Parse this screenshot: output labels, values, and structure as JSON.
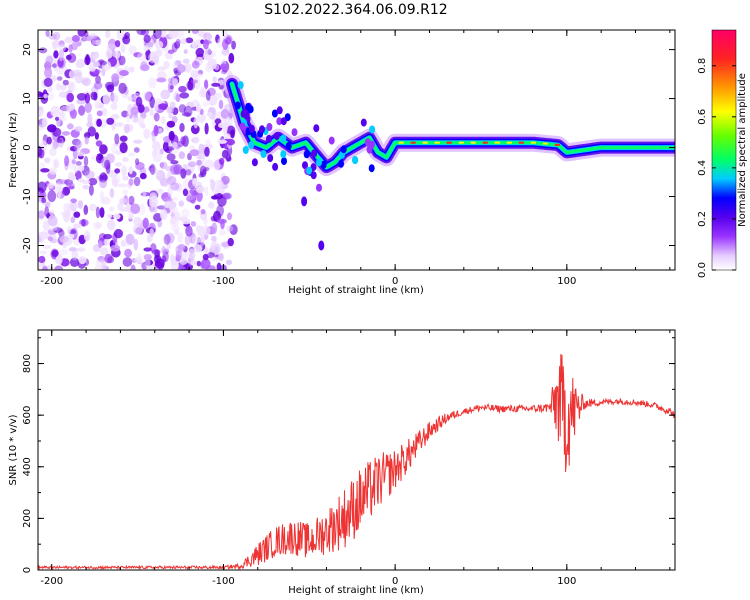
{
  "figure_title": "S102.2022.364.06.09.R12",
  "chart_data": [
    {
      "type": "heatmap",
      "title": "S102.2022.364.06.09.R12",
      "xlabel": "Height of straight line (km)",
      "ylabel": "Frequency (Hz)",
      "xlim": [
        -208,
        163
      ],
      "ylim": [
        -25,
        24
      ],
      "x_ticks": [
        -200,
        -100,
        0,
        100
      ],
      "y_ticks": [
        -20,
        -10,
        0,
        10,
        20
      ],
      "colorbar": {
        "label": "Normalized spectral amplitude",
        "range": [
          0,
          0.94
        ],
        "ticks": [
          "0.0",
          "0.2",
          "0.4",
          "0.6",
          "0.8"
        ],
        "tick_values": [
          0,
          0.2,
          0.4,
          0.6,
          0.8
        ],
        "colormap": [
          "#ffffff",
          "#e6ccff",
          "#9933ff",
          "#5500ee",
          "#0000ff",
          "#00ccff",
          "#00ff66",
          "#66ff00",
          "#ffff00",
          "#ff9900",
          "#ff2222",
          "#ff0066"
        ]
      },
      "signal_track": {
        "description_points_x": [
          -95,
          -88,
          -82,
          -75,
          -68,
          -60,
          -52,
          -45,
          -40,
          -35,
          -30,
          -25,
          -20,
          -15,
          -10,
          -5,
          0,
          20,
          40,
          60,
          80,
          95,
          100,
          120,
          140,
          163
        ],
        "description_points_y": [
          13,
          5,
          1,
          0,
          2,
          0,
          1,
          -2,
          -4,
          -3,
          -1,
          0,
          1,
          2,
          -1,
          -2,
          1,
          1,
          1,
          1,
          1,
          0.5,
          -1,
          0,
          0,
          0
        ]
      },
      "noise_region_x": [
        -208,
        -100
      ],
      "noise_region_y": [
        -25,
        24
      ],
      "isolated_blobs": [
        {
          "x": -53,
          "y": -11
        },
        {
          "x": -43,
          "y": -20
        }
      ]
    },
    {
      "type": "line",
      "xlabel": "Height of straight line (km)",
      "ylabel": "SNR (10 * v/v)",
      "xlim": [
        -208,
        163
      ],
      "ylim": [
        0,
        930
      ],
      "x_ticks": [
        -200,
        -100,
        0,
        100
      ],
      "y_ticks": [
        0,
        200,
        400,
        600,
        800
      ],
      "series": [
        {
          "name": "SNR",
          "color": "#ee3333",
          "trend_x": [
            -208,
            -150,
            -100,
            -90,
            -80,
            -70,
            -60,
            -50,
            -40,
            -30,
            -20,
            -10,
            0,
            10,
            20,
            30,
            40,
            50,
            60,
            70,
            80,
            90,
            95,
            100,
            105,
            110,
            120,
            130,
            140,
            150,
            160,
            163
          ],
          "trend_y": [
            10,
            10,
            10,
            15,
            60,
            110,
            130,
            110,
            150,
            200,
            270,
            340,
            390,
            460,
            540,
            590,
            615,
            630,
            625,
            625,
            625,
            630,
            660,
            600,
            620,
            645,
            650,
            655,
            650,
            640,
            615,
            600
          ],
          "noise_amplitude": [
            5,
            5,
            6,
            10,
            45,
            60,
            70,
            70,
            90,
            120,
            130,
            110,
            80,
            60,
            35,
            20,
            12,
            15,
            14,
            14,
            14,
            20,
            180,
            250,
            120,
            20,
            12,
            12,
            12,
            12,
            15,
            15
          ]
        }
      ]
    }
  ]
}
